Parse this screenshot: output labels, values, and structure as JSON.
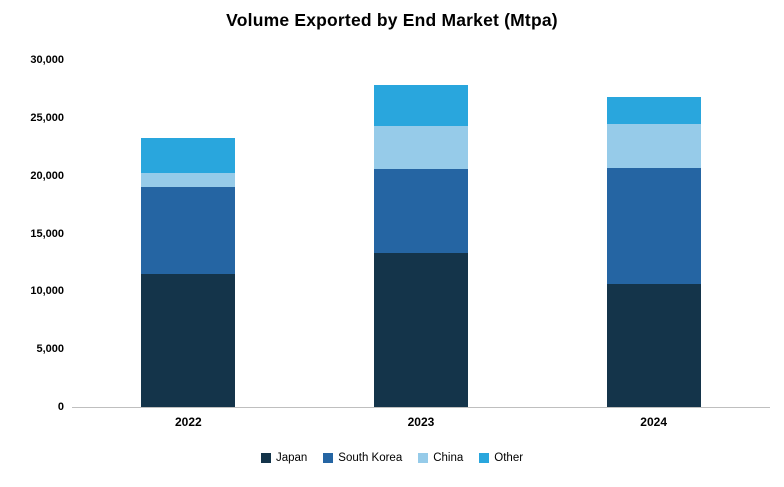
{
  "title": "Volume Exported by End Market (Mtpa)",
  "chart_data": {
    "type": "bar",
    "stacked": true,
    "title": "Volume Exported by End Market (Mtpa)",
    "categories": [
      "2022",
      "2023",
      "2024"
    ],
    "series": [
      {
        "name": "Japan",
        "color": "#14344a",
        "values": [
          11500,
          13300,
          10600
        ]
      },
      {
        "name": "South Korea",
        "color": "#2565a3",
        "values": [
          7500,
          7300,
          10100
        ]
      },
      {
        "name": "China",
        "color": "#96cbe9",
        "values": [
          1200,
          3700,
          3800
        ]
      },
      {
        "name": "Other",
        "color": "#29a6dd",
        "values": [
          3100,
          3500,
          2300
        ]
      }
    ],
    "totals": [
      23300,
      27800,
      26800
    ],
    "xlabel": "",
    "ylabel": "",
    "ylim": [
      0,
      30000
    ],
    "ytick_step": 5000,
    "ytick_labels": [
      "0",
      "5,000",
      "10,000",
      "15,000",
      "20,000",
      "25,000",
      "30,000"
    ],
    "grid": false,
    "legend_position": "bottom"
  }
}
